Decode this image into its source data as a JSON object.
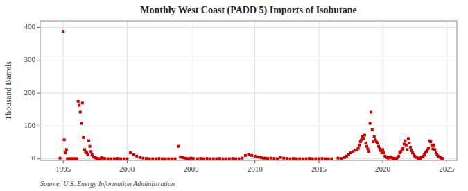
{
  "chart_data": {
    "type": "scatter",
    "title": "Monthly West Coast (PADD 5) Imports of Isobutane",
    "ylabel": "Thousand Barrels",
    "annotation": "Source: U.S. Energy Information Administration",
    "color": "#cc0000",
    "marker": "square",
    "grid": true,
    "xlim": [
      1993.2,
      2025.8
    ],
    "ylim": [
      -5,
      420
    ],
    "xticks": [
      1995,
      2000,
      2005,
      2010,
      2015,
      2020,
      2025
    ],
    "yticks": [
      0,
      100,
      200,
      300,
      400
    ],
    "x": [
      1994.75,
      1995.0,
      1995.08,
      1995.17,
      1995.25,
      1995.33,
      1995.42,
      1995.5,
      1995.58,
      1995.67,
      1995.75,
      1995.83,
      1995.92,
      1996.0,
      1996.08,
      1996.17,
      1996.25,
      1996.33,
      1996.42,
      1996.5,
      1996.58,
      1996.67,
      1996.75,
      1996.83,
      1996.92,
      1997.0,
      1997.08,
      1997.17,
      1997.25,
      1997.33,
      1997.42,
      1997.5,
      1997.58,
      1997.67,
      1997.75,
      1997.83,
      1997.92,
      1998.0,
      1998.08,
      1998.25,
      1998.5,
      1998.75,
      1999.0,
      1999.25,
      1999.5,
      1999.75,
      2000.0,
      2000.25,
      2000.5,
      2000.75,
      2001.0,
      2001.25,
      2001.5,
      2001.75,
      2002.0,
      2002.25,
      2002.5,
      2002.75,
      2003.0,
      2003.25,
      2003.5,
      2003.75,
      2004.0,
      2004.17,
      2004.33,
      2004.5,
      2004.67,
      2004.83,
      2005.0,
      2005.17,
      2005.5,
      2005.75,
      2006.0,
      2006.25,
      2006.5,
      2006.75,
      2007.0,
      2007.25,
      2007.5,
      2007.75,
      2008.0,
      2008.25,
      2008.5,
      2008.75,
      2009.0,
      2009.25,
      2009.5,
      2009.75,
      2010.0,
      2010.17,
      2010.33,
      2010.5,
      2010.67,
      2010.83,
      2011.0,
      2011.25,
      2011.5,
      2011.75,
      2012.0,
      2012.25,
      2012.5,
      2012.75,
      2013.0,
      2013.25,
      2013.5,
      2013.75,
      2014.0,
      2014.25,
      2014.5,
      2014.75,
      2015.0,
      2015.25,
      2015.5,
      2015.75,
      2016.0,
      2016.5,
      2016.75,
      2017.0,
      2017.17,
      2017.33,
      2017.5,
      2017.67,
      2017.83,
      2018.0,
      2018.08,
      2018.17,
      2018.25,
      2018.33,
      2018.42,
      2018.5,
      2018.58,
      2018.67,
      2018.75,
      2018.83,
      2018.92,
      2019.0,
      2019.08,
      2019.17,
      2019.25,
      2019.33,
      2019.42,
      2019.5,
      2019.58,
      2019.67,
      2019.75,
      2019.83,
      2019.92,
      2020.0,
      2020.08,
      2020.17,
      2020.25,
      2020.33,
      2020.42,
      2020.5,
      2020.58,
      2020.67,
      2020.75,
      2020.83,
      2020.92,
      2021.0,
      2021.08,
      2021.17,
      2021.25,
      2021.33,
      2021.42,
      2021.5,
      2021.58,
      2021.67,
      2021.75,
      2021.83,
      2021.92,
      2022.0,
      2022.08,
      2022.17,
      2022.25,
      2022.33,
      2022.42,
      2022.5,
      2022.58,
      2022.67,
      2022.75,
      2022.83,
      2022.92,
      2023.0,
      2023.08,
      2023.17,
      2023.25,
      2023.33,
      2023.42,
      2023.5,
      2023.58,
      2023.67,
      2023.75,
      2023.83,
      2023.92,
      2024.0,
      2024.08,
      2024.17,
      2024.25,
      2024.33,
      2024.42,
      2024.5,
      2024.58,
      2024.67
    ],
    "values": [
      2,
      388,
      58,
      18,
      28,
      0,
      0,
      0,
      0,
      0,
      0,
      0,
      0,
      0,
      0,
      175,
      163,
      142,
      108,
      170,
      65,
      28,
      22,
      18,
      12,
      55,
      38,
      22,
      12,
      8,
      5,
      3,
      2,
      1,
      0,
      0,
      0,
      3,
      2,
      1,
      0,
      0,
      0,
      1,
      0,
      0,
      0,
      18,
      12,
      8,
      4,
      2,
      1,
      0,
      0,
      0,
      1,
      0,
      0,
      0,
      0,
      0,
      38,
      6,
      4,
      2,
      1,
      0,
      2,
      1,
      0,
      1,
      0,
      1,
      0,
      0,
      0,
      1,
      0,
      0,
      0,
      1,
      0,
      0,
      2,
      10,
      14,
      10,
      8,
      6,
      5,
      3,
      2,
      2,
      1,
      2,
      1,
      0,
      4,
      2,
      1,
      0,
      1,
      0,
      0,
      0,
      0,
      1,
      0,
      0,
      0,
      1,
      0,
      0,
      0,
      2,
      1,
      4,
      8,
      12,
      18,
      22,
      26,
      28,
      32,
      42,
      52,
      58,
      68,
      62,
      72,
      48,
      38,
      30,
      22,
      108,
      142,
      88,
      52,
      68,
      58,
      52,
      48,
      38,
      32,
      25,
      18,
      28,
      18,
      8,
      6,
      4,
      2,
      4,
      6,
      4,
      2,
      1,
      0,
      1,
      0,
      4,
      8,
      18,
      22,
      28,
      32,
      45,
      55,
      42,
      28,
      62,
      48,
      35,
      25,
      18,
      12,
      8,
      6,
      4,
      2,
      1,
      0,
      4,
      6,
      8,
      12,
      18,
      22,
      28,
      32,
      55,
      52,
      42,
      30,
      42,
      28,
      18,
      12,
      8,
      6,
      4,
      2,
      1
    ]
  }
}
